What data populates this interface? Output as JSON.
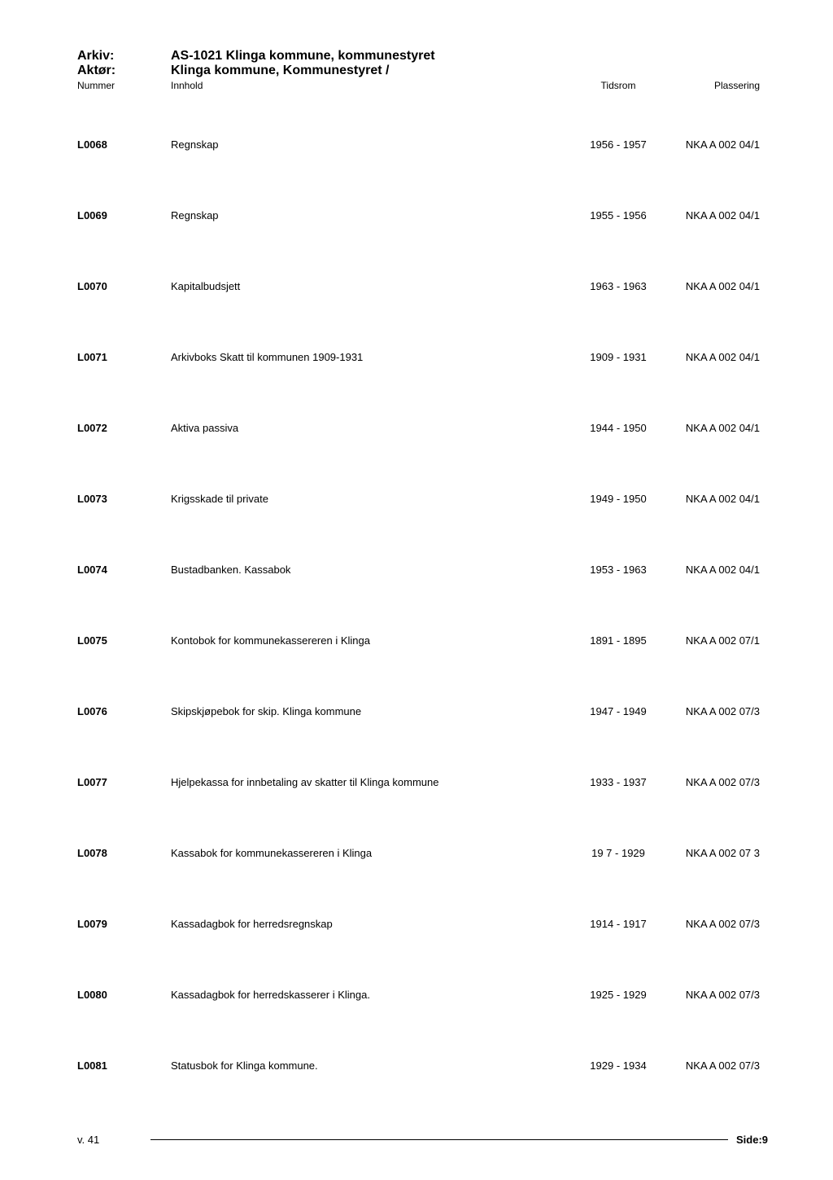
{
  "header": {
    "arkiv_label": "Arkiv:",
    "arkiv_value": "AS-1021 Klinga kommune, kommunestyret",
    "aktor_label": "Aktør:",
    "aktor_value": "Klinga kommune, Kommunestyret /",
    "col_nummer": "Nummer",
    "col_innhold": "Innhold",
    "col_tidsrom": "Tidsrom",
    "col_plassering": "Plassering"
  },
  "rows": [
    {
      "nummer": "L0068",
      "innhold": "Regnskap",
      "tidsrom": "1956 - 1957",
      "plassering": "NKA A 002 04/1"
    },
    {
      "nummer": "L0069",
      "innhold": "Regnskap",
      "tidsrom": "1955 - 1956",
      "plassering": "NKA A 002 04/1"
    },
    {
      "nummer": "L0070",
      "innhold": "Kapitalbudsjett",
      "tidsrom": "1963 - 1963",
      "plassering": "NKA A 002 04/1"
    },
    {
      "nummer": "L0071",
      "innhold": "Arkivboks Skatt til kommunen 1909-1931",
      "tidsrom": "1909 - 1931",
      "plassering": "NKA A 002 04/1"
    },
    {
      "nummer": "L0072",
      "innhold": "Aktiva passiva",
      "tidsrom": "1944 - 1950",
      "plassering": "NKA A 002 04/1"
    },
    {
      "nummer": "L0073",
      "innhold": "Krigsskade til private",
      "tidsrom": "1949 - 1950",
      "plassering": "NKA A 002 04/1"
    },
    {
      "nummer": "L0074",
      "innhold": "Bustadbanken. Kassabok",
      "tidsrom": "1953 - 1963",
      "plassering": "NKA A 002 04/1"
    },
    {
      "nummer": "L0075",
      "innhold": "Kontobok for kommunekassereren i Klinga",
      "tidsrom": "1891 - 1895",
      "plassering": "NKA A 002 07/1"
    },
    {
      "nummer": "L0076",
      "innhold": "Skipskjøpebok for skip. Klinga kommune",
      "tidsrom": "1947 - 1949",
      "plassering": "NKA A 002 07/3"
    },
    {
      "nummer": "L0077",
      "innhold": "Hjelpekassa for innbetaling av skatter til Klinga kommune",
      "tidsrom": "1933 - 1937",
      "plassering": "NKA A 002 07/3"
    },
    {
      "nummer": "L0078",
      "innhold": "Kassabok for kommunekassereren i Klinga",
      "tidsrom": "19 7 - 1929",
      "plassering": "NKA A 002 07 3"
    },
    {
      "nummer": "L0079",
      "innhold": "Kassadagbok for herredsregnskap",
      "tidsrom": "1914 - 1917",
      "plassering": "NKA A 002 07/3"
    },
    {
      "nummer": "L0080",
      "innhold": "Kassadagbok for herredskasserer i Klinga.",
      "tidsrom": "1925 - 1929",
      "plassering": "NKA A 002 07/3"
    },
    {
      "nummer": "L0081",
      "innhold": "Statusbok for Klinga kommune.",
      "tidsrom": "1929 - 1934",
      "plassering": "NKA A 002 07/3"
    }
  ],
  "footer": {
    "version": "v. 41",
    "side": "Side:9"
  }
}
